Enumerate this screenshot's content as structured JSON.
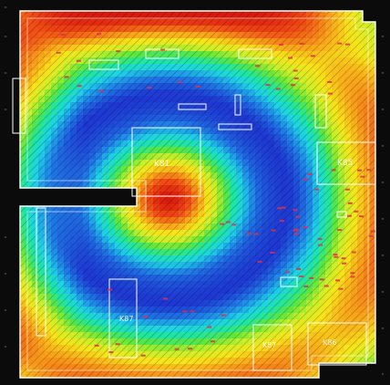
{
  "figure": {
    "description_kind": "thermal-map",
    "palette_stops": [
      "#1e2fd0",
      "#1f7fe6",
      "#1fd3e6",
      "#1fe6a0",
      "#5fe63c",
      "#c9ef2a",
      "#f7e51a",
      "#f8a21a",
      "#f04a15",
      "#d81a0e"
    ],
    "board_outline_color": "#ffffff",
    "background_color": "#0a0a0a"
  },
  "components": [
    {
      "id": "k81",
      "label": "K81"
    },
    {
      "id": "k85",
      "label": "K85"
    },
    {
      "id": "k87",
      "label": "K87"
    },
    {
      "id": "k87b",
      "label": "K87"
    },
    {
      "id": "k86",
      "label": "K86"
    }
  ]
}
